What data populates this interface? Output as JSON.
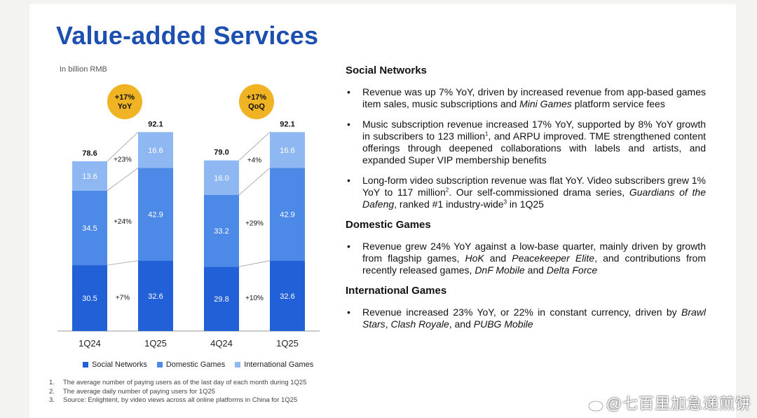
{
  "page": {
    "title": "Value-added Services",
    "unit_note": "In billion RMB"
  },
  "chart_data": {
    "type": "bar",
    "stacked": true,
    "unit": "In billion RMB",
    "groups": [
      {
        "badge": [
          "+17%",
          "YoY"
        ],
        "categories": [
          "1Q24",
          "1Q25"
        ],
        "totals": [
          "78.6",
          "92.1"
        ],
        "series_values": {
          "Social Networks": [
            30.5,
            32.6
          ],
          "Domestic Games": [
            34.5,
            42.9
          ],
          "International Games": [
            13.6,
            16.6
          ]
        },
        "growth": {
          "International Games": "+23%",
          "Domestic Games": "+24%",
          "Social Networks": "+7%"
        }
      },
      {
        "badge": [
          "+17%",
          "QoQ"
        ],
        "categories": [
          "4Q24",
          "1Q25"
        ],
        "totals": [
          "79.0",
          "92.1"
        ],
        "series_values": {
          "Social Networks": [
            29.8,
            32.6
          ],
          "Domestic Games": [
            33.2,
            42.9
          ],
          "International Games": [
            16.0,
            16.6
          ]
        },
        "growth": {
          "International Games": "+4%",
          "Domestic Games": "+29%",
          "Social Networks": "+10%"
        }
      }
    ],
    "series": [
      {
        "name": "Social Networks",
        "color": "#2160d6"
      },
      {
        "name": "Domestic Games",
        "color": "#4d8ae8"
      },
      {
        "name": "International Games",
        "color": "#8fb8f2"
      }
    ],
    "ylim": [
      0,
      100
    ],
    "legend": "bottom"
  },
  "footnotes": [
    {
      "num": "1.",
      "text": "The average number of paying users as of the last day of each month during 1Q25"
    },
    {
      "num": "2.",
      "text": "The average daily number of paying users for 1Q25"
    },
    {
      "num": "3.",
      "text": "Source: Enlightent, by video views across all online platforms in China for 1Q25"
    }
  ],
  "sections": {
    "social_networks": {
      "title": "Social Networks",
      "b1": {
        "p1": "Revenue was up 7% YoY, driven by increased revenue from app-based games item sales, music subscriptions and ",
        "i1": "Mini Games",
        "p2": " platform service fees"
      },
      "b2": {
        "p1": "Music subscription revenue increased 17% YoY, supported by 8% YoY growth in subscribers to 123 million",
        "sup1": "1",
        "p2": ", and ARPU improved. TME strengthened content offerings through deepened collaborations with labels and artists, and expanded Super VIP membership benefits"
      },
      "b3": {
        "p1": "Long-form video subscription revenue was flat YoY. Video subscribers grew 1% YoY to 117 million",
        "sup1": "2",
        "p2": ". Our self-commissioned drama series, ",
        "i1": "Guardians of the Dafeng",
        "p3": ", ranked #1 industry-wide",
        "sup2": "3",
        "p4": " in 1Q25"
      }
    },
    "domestic_games": {
      "title": "Domestic Games",
      "b1": {
        "p1": "Revenue grew 24% YoY against a low-base quarter, mainly driven by growth from flagship games, ",
        "i1": "HoK",
        "p2": " and ",
        "i2": "Peacekeeper Elite",
        "p3": ", and contributions from recently released games, ",
        "i3": "DnF Mobile",
        "p4": " and ",
        "i4": "Delta Force"
      }
    },
    "international_games": {
      "title": "International Games",
      "b1": {
        "p1": "Revenue increased 23% YoY, or 22% in constant currency, driven by ",
        "i1": "Brawl Stars",
        "p2": ", ",
        "i2": "Clash Royale",
        "p3": ", and ",
        "i3": "PUBG Mobile"
      }
    }
  },
  "watermark": "@七百里加急递煎饼",
  "colors": {
    "title": "#1c4fb0",
    "badge": "#f0b323"
  }
}
